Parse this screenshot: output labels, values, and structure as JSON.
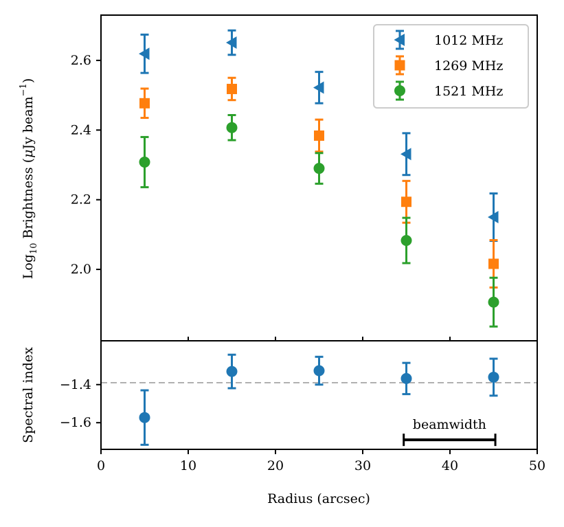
{
  "chart_data": [
    {
      "panel": "top",
      "type": "scatter",
      "ylabel": "Log10 Brightness (μJy beam−1)",
      "ylabel_parts": {
        "log": "Log",
        "sub": "10",
        "main": " Brightness (",
        "mu": "μ",
        "unit": "Jy beam",
        "sup": "−1",
        "close": ")"
      },
      "ylim": [
        1.795,
        2.73
      ],
      "yticks": [
        {
          "value": 2.0,
          "label": "2.0"
        },
        {
          "value": 2.2,
          "label": "2.2"
        },
        {
          "value": 2.4,
          "label": "2.4"
        },
        {
          "value": 2.6,
          "label": "2.6"
        }
      ],
      "legend_position": "top-right",
      "series": [
        {
          "name": "1012 MHz",
          "marker": "triangle-left",
          "color": "#1f77b4",
          "x": [
            5,
            15,
            25,
            35,
            45
          ],
          "y": [
            2.619,
            2.651,
            2.522,
            2.331,
            2.15
          ],
          "err": [
            0.055,
            0.035,
            0.045,
            0.06,
            0.068
          ]
        },
        {
          "name": "1269 MHz",
          "marker": "square",
          "color": "#ff7f0e",
          "x": [
            5,
            15,
            25,
            35,
            45
          ],
          "y": [
            2.477,
            2.518,
            2.384,
            2.194,
            2.016
          ],
          "err": [
            0.042,
            0.032,
            0.046,
            0.06,
            0.068
          ]
        },
        {
          "name": "1521 MHz",
          "marker": "circle",
          "color": "#2ca02c",
          "x": [
            5,
            15,
            25,
            35,
            45
          ],
          "y": [
            2.308,
            2.407,
            2.29,
            2.083,
            1.906
          ],
          "err": [
            0.072,
            0.036,
            0.044,
            0.065,
            0.07
          ]
        }
      ]
    },
    {
      "panel": "bottom",
      "type": "scatter",
      "ylabel": "Spectral index",
      "xlabel": "Radius (arcsec)",
      "xlim": [
        0,
        50
      ],
      "xticks": [
        {
          "value": 0,
          "label": "0"
        },
        {
          "value": 10,
          "label": "10"
        },
        {
          "value": 20,
          "label": "20"
        },
        {
          "value": 30,
          "label": "30"
        },
        {
          "value": 40,
          "label": "40"
        },
        {
          "value": 50,
          "label": "50"
        }
      ],
      "ylim": [
        -1.74,
        -1.17
      ],
      "yticks": [
        {
          "value": -1.6,
          "label": "−1.6"
        },
        {
          "value": -1.4,
          "label": "−1.4"
        }
      ],
      "reference_line": {
        "y": -1.39,
        "color": "#b0b0b0",
        "style": "dashed"
      },
      "series": [
        {
          "name": "Spectral index",
          "marker": "circle",
          "color": "#1f77b4",
          "x": [
            5,
            15,
            25,
            35,
            45
          ],
          "y": [
            -1.573,
            -1.331,
            -1.327,
            -1.368,
            -1.361
          ],
          "err": [
            0.143,
            0.088,
            0.073,
            0.082,
            0.097
          ]
        }
      ],
      "annotation": {
        "label": "beamwidth",
        "x_start": 34.7,
        "x_end": 45.2,
        "y": -1.69,
        "color": "#000000"
      }
    }
  ]
}
